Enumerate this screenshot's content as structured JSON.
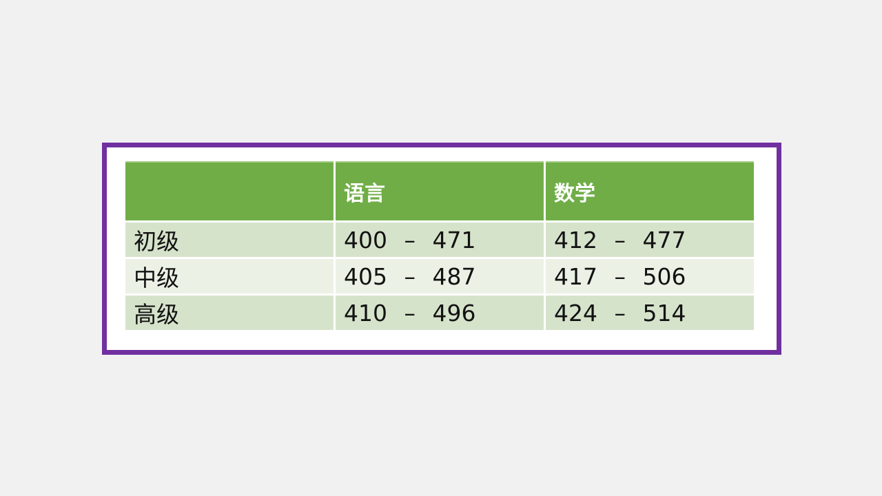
{
  "page": {
    "background_color": "#F1F1F2",
    "frame": {
      "border_color": "#7030A0",
      "background_color": "#FFFFFF"
    }
  },
  "table": {
    "header": {
      "background_color": "#70AD47",
      "text_color": "#FFFFFF",
      "columns": [
        "",
        "语言",
        "数学"
      ]
    },
    "band_colors": [
      "#D6E3CB",
      "#EBF1E5"
    ],
    "text_color": "#121212",
    "rows": [
      {
        "label": "初级",
        "values": [
          "400 – 471",
          "412 – 477"
        ]
      },
      {
        "label": "中级",
        "values": [
          "405 – 487",
          "417 – 506"
        ]
      },
      {
        "label": "高级",
        "values": [
          "410 – 496",
          "424 – 514"
        ]
      }
    ]
  },
  "chart_data": {
    "type": "table",
    "title": "",
    "columns": [
      "",
      "语言",
      "数学"
    ],
    "rows": [
      [
        "初级",
        "400 – 471",
        "412 – 477"
      ],
      [
        "中级",
        "405 – 487",
        "417 – 506"
      ],
      [
        "高级",
        "410 – 496",
        "424 – 514"
      ]
    ],
    "numeric_ranges": {
      "语言": {
        "初级": [
          400,
          471
        ],
        "中级": [
          405,
          487
        ],
        "高级": [
          410,
          496
        ]
      },
      "数学": {
        "初级": [
          412,
          477
        ],
        "中级": [
          417,
          506
        ],
        "高级": [
          424,
          514
        ]
      }
    },
    "layout_hints": {
      "header_fill": "#70AD47",
      "banded_rows": true,
      "outer_frame": "#7030A0"
    }
  }
}
